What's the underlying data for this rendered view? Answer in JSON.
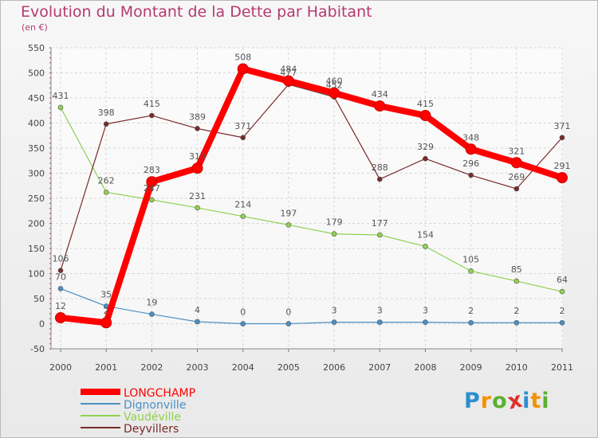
{
  "title": "Evolution du Montant de la Dette par Habitant",
  "subtitle": "(en €)",
  "logo_letters": [
    "P",
    "r",
    "o",
    "x",
    "i",
    "t",
    "i"
  ],
  "colors": {
    "title": "#b53a6e",
    "logo": [
      "#2a8fd0",
      "#f39200",
      "#5ab130",
      "#e0312b",
      "#2a8fd0",
      "#f39200",
      "#5ab130"
    ]
  },
  "chart_data": {
    "type": "line",
    "categories": [
      "2000",
      "2001",
      "2002",
      "2003",
      "2004",
      "2005",
      "2006",
      "2007",
      "2008",
      "2009",
      "2010",
      "2011"
    ],
    "ylim": [
      -50,
      550
    ],
    "yticks": [
      "-50",
      "0",
      "50",
      "100",
      "150",
      "200",
      "250",
      "300",
      "350",
      "400",
      "450",
      "500",
      "550"
    ],
    "grid": true,
    "legend_position": "bottom-left",
    "series": [
      {
        "name": "LONGCHAMP",
        "color": "#ff0000",
        "values": [
          12,
          2,
          283,
          310,
          508,
          484,
          460,
          434,
          415,
          348,
          321,
          291
        ],
        "labels": [
          "12",
          "2",
          "283",
          "310",
          "508",
          "484",
          "460",
          "434",
          "415",
          "348",
          "321",
          "291"
        ]
      },
      {
        "name": "Dignonville",
        "color": "#4a90c4",
        "values": [
          70,
          35,
          19,
          4,
          0,
          0,
          3,
          3,
          3,
          2,
          2,
          2
        ],
        "labels": [
          "70",
          "35",
          "19",
          "4",
          "0",
          "0",
          "3",
          "3",
          "3",
          "2",
          "2",
          "2"
        ]
      },
      {
        "name": "Vaudéville",
        "color": "#8fd14f",
        "values": [
          431,
          262,
          247,
          231,
          214,
          197,
          179,
          177,
          154,
          105,
          85,
          64
        ],
        "labels": [
          "431",
          "262",
          "247",
          "231",
          "214",
          "197",
          "179",
          "177",
          "154",
          "105",
          "85",
          "64"
        ]
      },
      {
        "name": "Deyvillers",
        "color": "#7a2a2a",
        "values": [
          106,
          398,
          415,
          389,
          371,
          477,
          452,
          288,
          329,
          296,
          269,
          371
        ],
        "labels": [
          "106",
          "398",
          "415",
          "389",
          "371",
          "477",
          "452",
          "288",
          "329",
          "296",
          "269",
          "371"
        ]
      }
    ]
  }
}
